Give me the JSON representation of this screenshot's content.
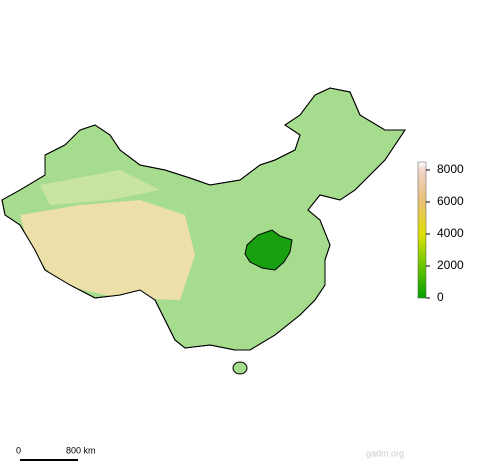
{
  "legend": {
    "range": [
      0,
      8500
    ],
    "ticks": [
      0,
      2000,
      4000,
      6000,
      8000
    ]
  },
  "scale_bar": {
    "start": "0",
    "end": "800 km"
  },
  "credit": "gadm.org"
}
